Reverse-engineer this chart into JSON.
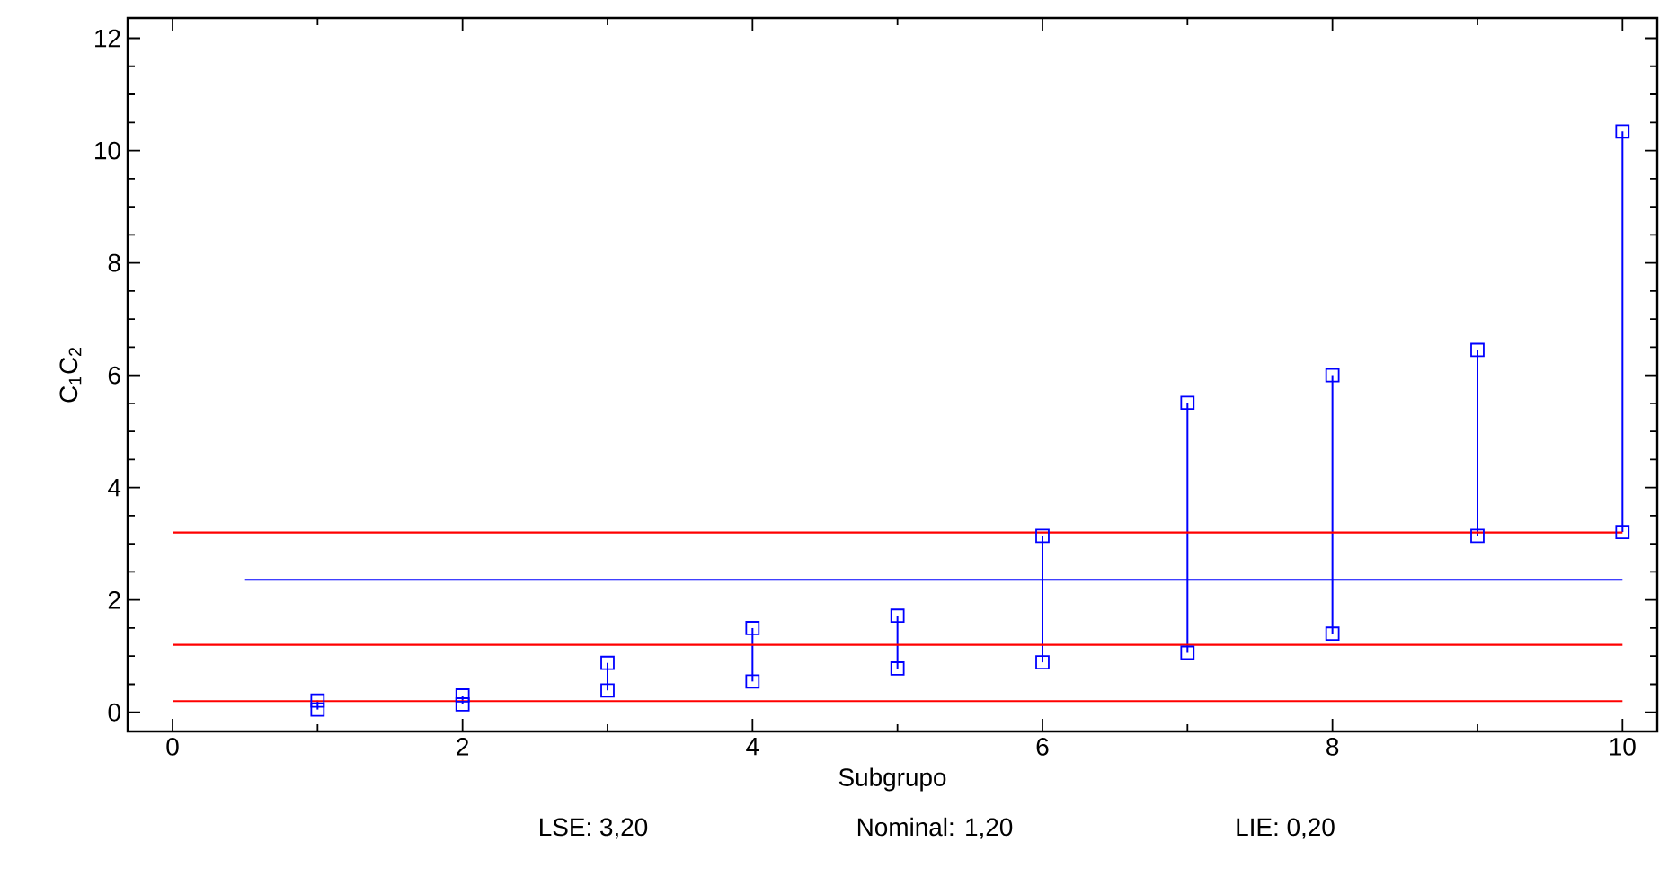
{
  "chart_data": {
    "type": "scatter",
    "xlabel": "Subgrupo",
    "ylabel": "C$_{1}$C$_{2}$",
    "x": [
      1,
      2,
      3,
      4,
      5,
      6,
      7,
      8,
      9,
      10
    ],
    "marker": "square",
    "series": [
      {
        "color": "#0000ff",
        "values": [
          0.05,
          0.14,
          0.39,
          0.55,
          0.78,
          0.89,
          1.06,
          1.4,
          3.14,
          3.21
        ],
        "errors": [
          [
            0.05,
            0.21
          ],
          [
            0.14,
            0.3
          ],
          [
            0.39,
            0.88
          ],
          [
            0.55,
            1.5
          ],
          [
            0.78,
            1.72
          ],
          [
            0.89,
            3.14
          ],
          [
            1.06,
            5.51
          ],
          [
            1.4,
            6.0
          ],
          [
            3.14,
            6.45
          ],
          [
            3.21,
            10.34
          ]
        ]
      },
      {
        "color": "#0000ff",
        "values": [
          0.21,
          0.3,
          0.88,
          1.5,
          1.72,
          3.14,
          5.51,
          6.0,
          6.45,
          10.34
        ]
      },
      {
        "type": "line",
        "color": "#0000ff",
        "marker": "none",
        "x": [
          0.5,
          10
        ],
        "values": [
          2.36,
          2.36
        ]
      }
    ],
    "ref_lines": [
      {
        "axis": "y",
        "value": 3.2,
        "color": "#ff0000"
      },
      {
        "axis": "y",
        "value": 1.2,
        "color": "#ff0000"
      },
      {
        "axis": "y",
        "value": 0.2,
        "color": "#ff0000"
      }
    ],
    "xlim": [
      -0.31,
      10.24
    ],
    "ylim": [
      -0.34,
      12.36
    ],
    "xticks": [
      0,
      2,
      4,
      6,
      8,
      10
    ],
    "yticks": [
      0,
      2,
      4,
      6,
      8,
      10,
      12
    ],
    "annotations": [
      "LSE: 3,20",
      "Nominal: 1,20",
      "LIE: 0,20"
    ]
  }
}
